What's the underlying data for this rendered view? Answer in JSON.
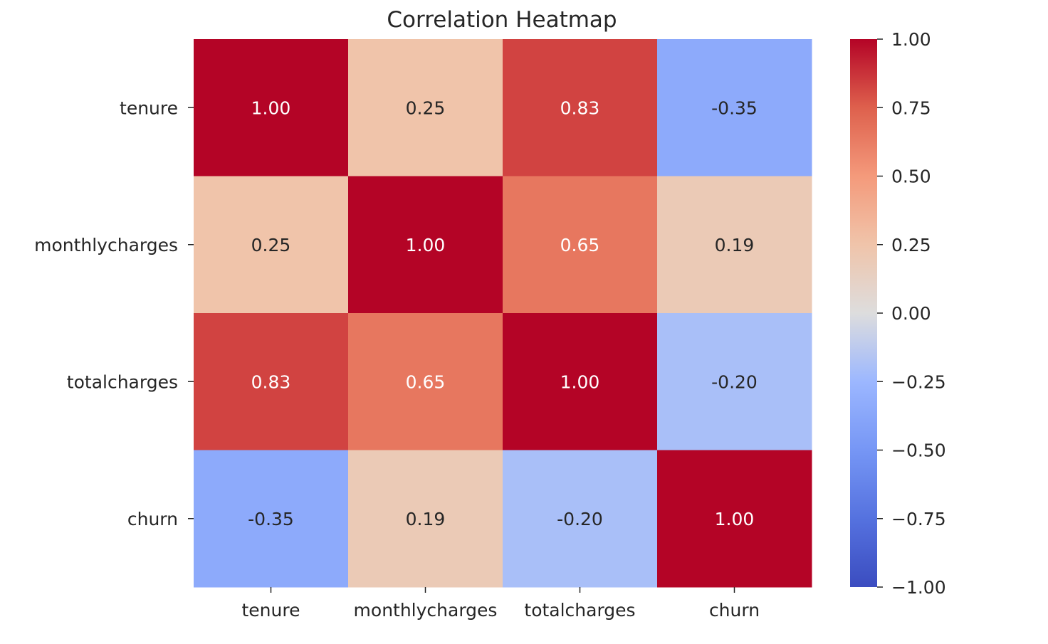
{
  "chart_data": {
    "type": "heatmap",
    "title": "Correlation Heatmap",
    "x_labels": [
      "tenure",
      "monthlycharges",
      "totalcharges",
      "churn"
    ],
    "y_labels": [
      "tenure",
      "monthlycharges",
      "totalcharges",
      "churn"
    ],
    "values": [
      [
        1.0,
        0.25,
        0.83,
        -0.35
      ],
      [
        0.25,
        1.0,
        0.65,
        0.19
      ],
      [
        0.83,
        0.65,
        1.0,
        -0.2
      ],
      [
        -0.35,
        0.19,
        -0.2,
        1.0
      ]
    ],
    "annotations": [
      [
        "1.00",
        "0.25",
        "0.83",
        "-0.35"
      ],
      [
        "0.25",
        "1.00",
        "0.65",
        "0.19"
      ],
      [
        "0.83",
        "0.65",
        "1.00",
        "-0.20"
      ],
      [
        "-0.35",
        "0.19",
        "-0.20",
        "1.00"
      ]
    ],
    "colormap": "coolwarm",
    "vmin": -1.0,
    "vmax": 1.0,
    "colorbar_ticks": [
      1.0,
      0.75,
      0.5,
      0.25,
      0.0,
      -0.25,
      -0.5,
      -0.75,
      -1.0
    ],
    "colorbar_tick_labels": [
      "1.00",
      "0.75",
      "0.50",
      "0.25",
      "0.00",
      "−0.25",
      "−0.50",
      "−0.75",
      "−1.00"
    ],
    "colors": {
      "cmap_min": "#3b4cc0",
      "cmap_mid": "#dddddd",
      "cmap_max": "#b40426",
      "annotation_light": "#ffffff",
      "annotation_dark": "#262626"
    }
  }
}
